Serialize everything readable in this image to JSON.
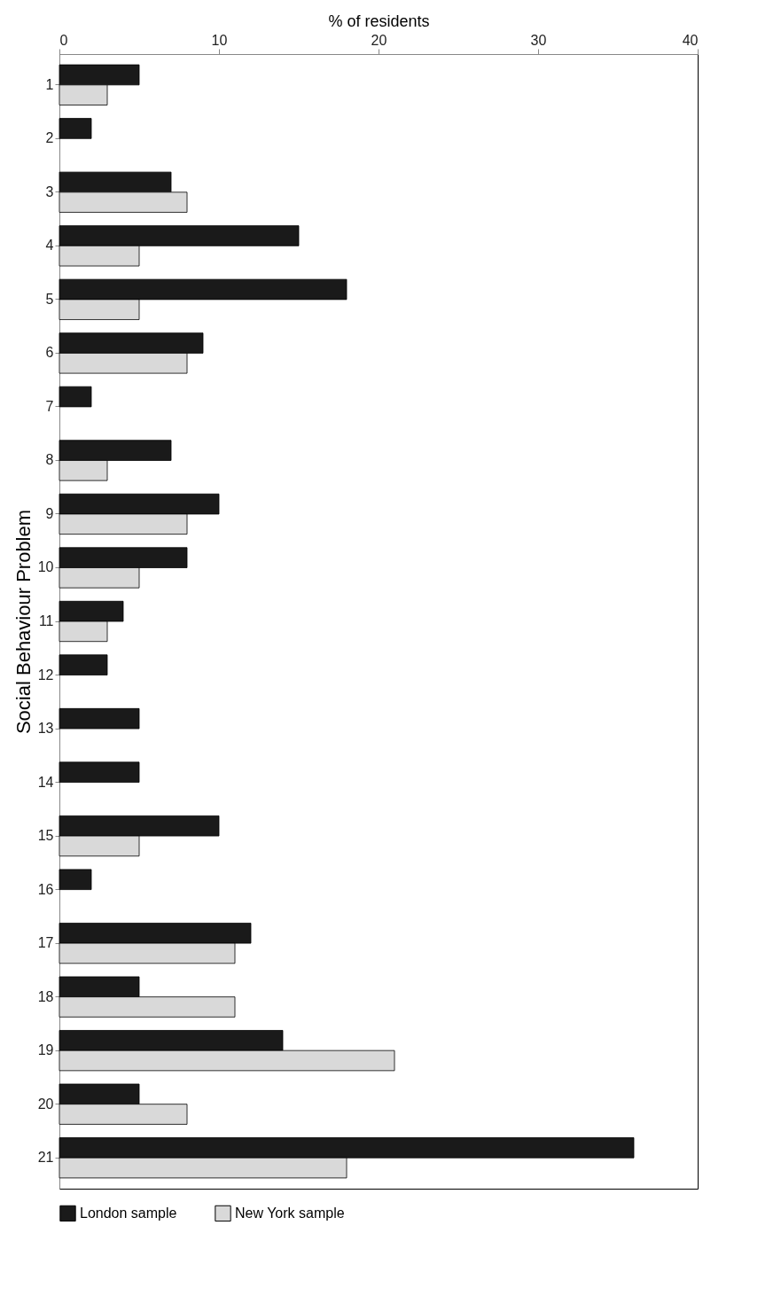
{
  "chart_data": {
    "type": "bar",
    "orientation": "horizontal",
    "xlabel": "% of residents",
    "ylabel": "Social Behaviour Problem",
    "categories": [
      "1",
      "2",
      "3",
      "4",
      "5",
      "6",
      "7",
      "8",
      "9",
      "10",
      "11",
      "12",
      "13",
      "14",
      "15",
      "16",
      "17",
      "18",
      "19",
      "20",
      "21"
    ],
    "series": [
      {
        "name": "London sample",
        "color": "#1a1a1a",
        "values": [
          5,
          2,
          7,
          15,
          18,
          9,
          2,
          7,
          10,
          8,
          4,
          3,
          5,
          5,
          10,
          2,
          12,
          5,
          14,
          5,
          36
        ]
      },
      {
        "name": "New York sample",
        "color": "#d9d9d9",
        "values": [
          3,
          null,
          8,
          5,
          5,
          8,
          null,
          3,
          8,
          5,
          3,
          null,
          null,
          null,
          5,
          null,
          11,
          11,
          21,
          8,
          18
        ]
      }
    ],
    "xlim": [
      0,
      40
    ],
    "xticks": [
      0,
      10,
      20,
      30,
      40
    ],
    "legend": "bottom"
  }
}
